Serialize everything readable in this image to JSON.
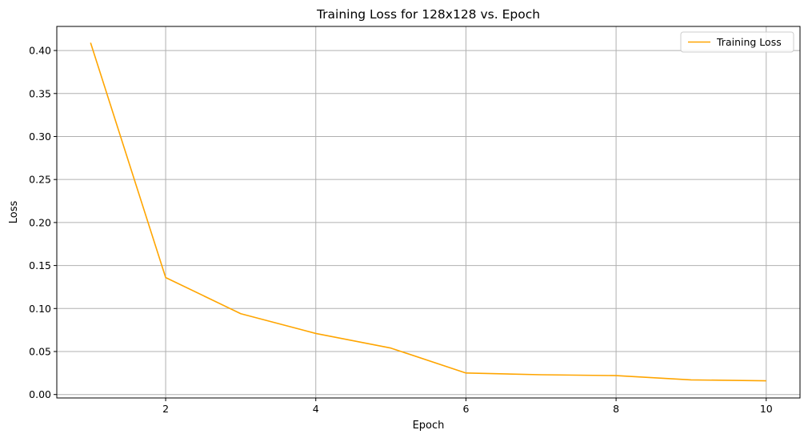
{
  "chart_data": {
    "type": "line",
    "title": "Training Loss for 128x128 vs. Epoch",
    "xlabel": "Epoch",
    "ylabel": "Loss",
    "x": [
      1,
      2,
      3,
      4,
      5,
      6,
      7,
      8,
      9,
      10
    ],
    "series": [
      {
        "name": "Training Loss",
        "color": "#FFA500",
        "values": [
          0.409,
          0.136,
          0.094,
          0.071,
          0.054,
          0.025,
          0.023,
          0.022,
          0.017,
          0.016
        ]
      }
    ],
    "xlim": [
      0.55,
      10.45
    ],
    "ylim": [
      -0.004,
      0.428
    ],
    "xticks": [
      2,
      4,
      6,
      8,
      10
    ],
    "xtick_labels": [
      "2",
      "4",
      "6",
      "8",
      "10"
    ],
    "yticks": [
      0.0,
      0.05,
      0.1,
      0.15,
      0.2,
      0.25,
      0.3,
      0.35,
      0.4
    ],
    "ytick_labels": [
      "0.00",
      "0.05",
      "0.10",
      "0.15",
      "0.20",
      "0.25",
      "0.30",
      "0.35",
      "0.40"
    ],
    "grid": true,
    "legend_position": "top-right"
  }
}
